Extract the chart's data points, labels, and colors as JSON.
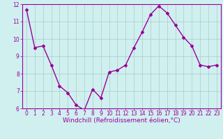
{
  "x": [
    0,
    1,
    2,
    3,
    4,
    5,
    6,
    7,
    8,
    9,
    10,
    11,
    12,
    13,
    14,
    15,
    16,
    17,
    18,
    19,
    20,
    21,
    22,
    23
  ],
  "y": [
    11.7,
    9.5,
    9.6,
    8.5,
    7.3,
    6.9,
    6.2,
    5.9,
    7.1,
    6.6,
    8.1,
    8.2,
    8.5,
    9.5,
    10.4,
    11.4,
    11.9,
    11.5,
    10.8,
    10.1,
    9.6,
    8.5,
    8.4,
    8.5
  ],
  "line_color": "#990099",
  "marker": "D",
  "marker_size": 2,
  "bg_color": "#d0f0f0",
  "grid_color": "#aacccc",
  "xlabel": "Windchill (Refroidissement éolien,°C)",
  "xlabel_color": "#990099",
  "ylim": [
    6,
    12
  ],
  "xlim": [
    -0.5,
    23.5
  ],
  "yticks": [
    6,
    7,
    8,
    9,
    10,
    11,
    12
  ],
  "xticks": [
    0,
    1,
    2,
    3,
    4,
    5,
    6,
    7,
    8,
    9,
    10,
    11,
    12,
    13,
    14,
    15,
    16,
    17,
    18,
    19,
    20,
    21,
    22,
    23
  ],
  "tick_label_color": "#990099",
  "tick_label_fontsize": 5.5,
  "xlabel_fontsize": 6.5,
  "line_width": 1.0
}
